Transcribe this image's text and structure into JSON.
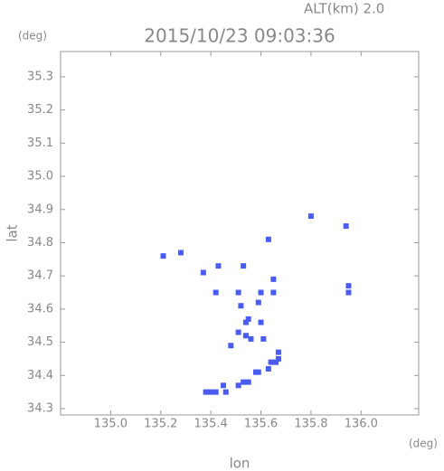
{
  "chart_data": {
    "type": "scatter",
    "title": "2015/10/23 09:03:36",
    "subtitle": "ALT(km) 2.0",
    "x_label": "lon",
    "y_label": "lat",
    "x_unit": "(deg)",
    "y_unit": "(deg)",
    "color": "#4a5cf0",
    "xlim": [
      134.8,
      136.23
    ],
    "ylim": [
      34.281,
      35.376
    ],
    "xticks": [
      {
        "value": 135.0,
        "label": "135.0"
      },
      135.2,
      135.4,
      135.6,
      135.8,
      {
        "value": 136.0,
        "label": "136.0"
      }
    ],
    "yticks": [
      34.3,
      34.4,
      34.5,
      34.6,
      34.7,
      34.8,
      34.9,
      {
        "value": 35.0,
        "label": "35.0"
      },
      35.1,
      35.2,
      35.3
    ],
    "x": [
      135.21,
      135.28,
      135.37,
      135.43,
      135.42,
      135.53,
      135.51,
      135.52,
      135.54,
      135.54,
      135.56,
      135.6,
      135.59,
      135.65,
      135.65,
      135.61,
      135.67,
      135.66,
      135.63,
      135.58,
      135.55,
      135.51,
      135.45,
      135.4,
      135.42,
      135.95,
      135.94,
      135.8,
      135.63,
      135.48,
      135.64,
      135.67,
      135.59,
      135.53,
      135.46,
      135.38,
      135.55,
      135.51,
      135.6,
      135.95
    ],
    "y": [
      34.76,
      34.77,
      34.71,
      34.73,
      34.65,
      34.73,
      34.65,
      34.61,
      34.56,
      34.52,
      34.51,
      34.56,
      34.62,
      34.65,
      34.69,
      34.51,
      34.47,
      34.44,
      34.42,
      34.41,
      34.38,
      34.37,
      34.37,
      34.35,
      34.35,
      34.67,
      34.85,
      34.88,
      34.81,
      34.49,
      34.44,
      34.45,
      34.41,
      34.38,
      34.35,
      34.35,
      34.57,
      34.53,
      34.65,
      34.65
    ]
  }
}
